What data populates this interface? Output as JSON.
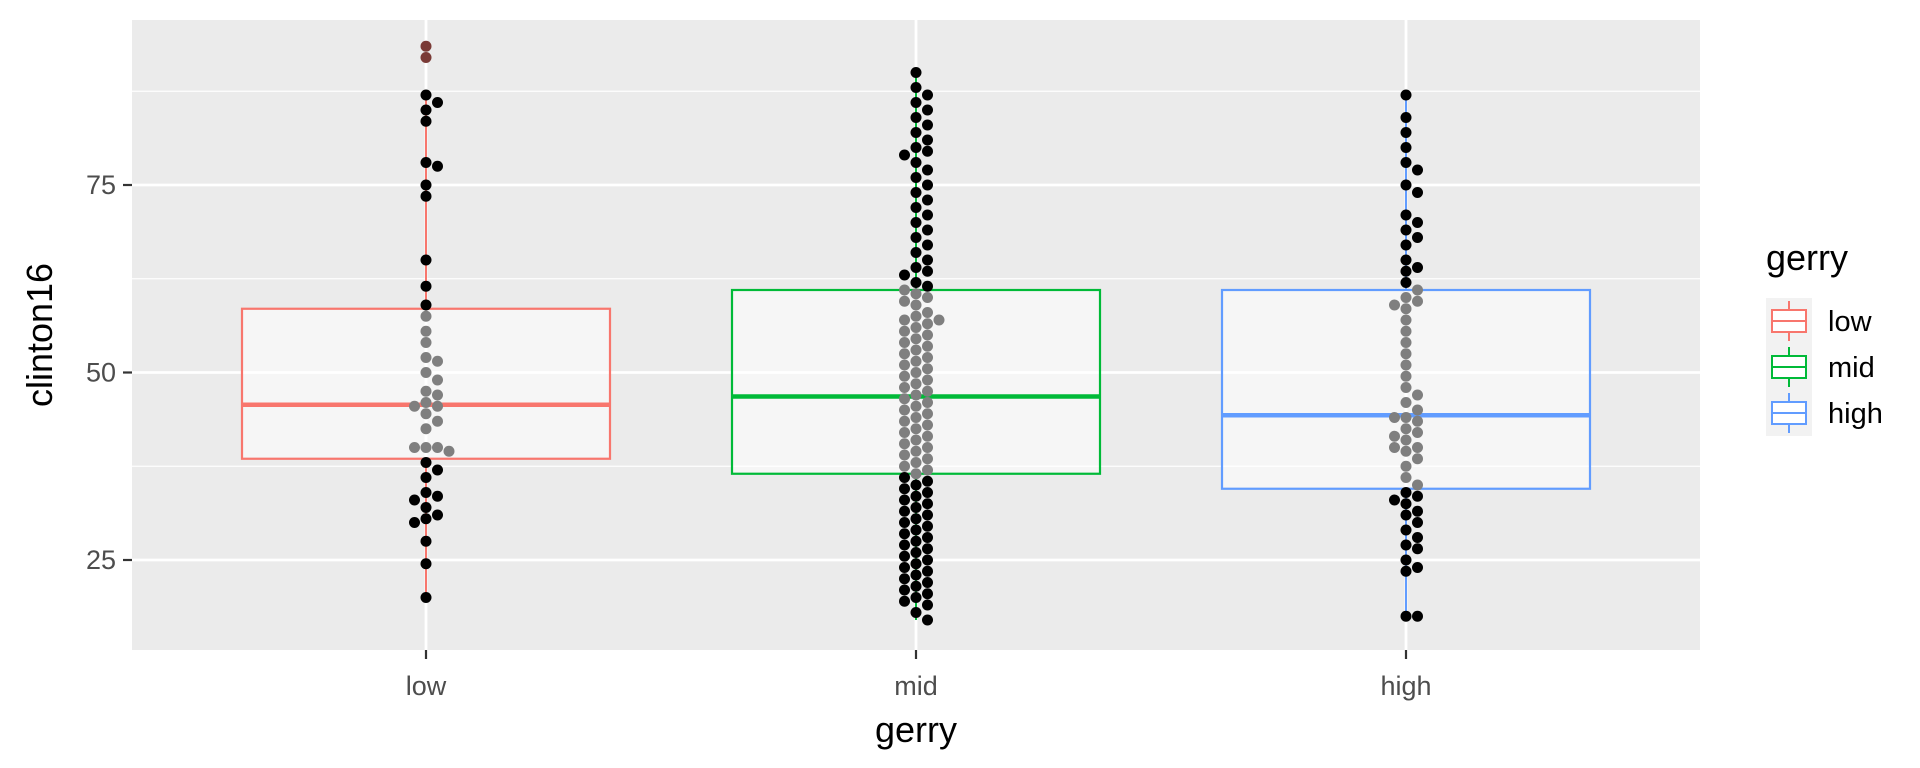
{
  "chart_data": {
    "type": "box",
    "title": "",
    "xlabel": "gerry",
    "ylabel": "clinton16",
    "categories": [
      "low",
      "mid",
      "high"
    ],
    "ylim": [
      13,
      97
    ],
    "yticks": [
      25,
      50,
      75
    ],
    "grid": true,
    "legend": {
      "title": "gerry",
      "position": "right",
      "entries": [
        "low",
        "mid",
        "high"
      ]
    },
    "colors": {
      "low": "#F8766D",
      "mid": "#00BA38",
      "high": "#619CFF"
    },
    "boxes": [
      {
        "category": "low",
        "whisker_low": 20,
        "q1": 38.5,
        "median": 45.7,
        "q3": 58.5,
        "whisker_high": 87,
        "outliers": [
          92,
          93.5
        ]
      },
      {
        "category": "mid",
        "whisker_low": 17,
        "q1": 36.5,
        "median": 46.8,
        "q3": 61.0,
        "whisker_high": 90,
        "outliers": []
      },
      {
        "category": "high",
        "whisker_low": 17.5,
        "q1": 34.5,
        "median": 44.3,
        "q3": 61.0,
        "whisker_high": 87,
        "outliers": []
      }
    ],
    "points": [
      {
        "category": "low",
        "values": [
          92,
          93.5,
          87,
          86,
          85,
          83.5,
          78,
          77.5,
          75,
          73.5,
          65,
          61.5,
          59,
          57.5,
          55.5,
          54,
          52,
          51.5,
          50,
          49,
          47.5,
          47,
          46,
          45.5,
          45.5,
          44.5,
          43.5,
          42.5,
          40,
          40,
          40,
          39.5,
          38,
          37,
          36,
          34,
          33.5,
          33,
          32,
          31,
          30.5,
          30,
          27.5,
          24.5,
          20
        ]
      },
      {
        "category": "mid",
        "values": [
          90,
          88,
          87,
          86,
          85,
          84,
          83,
          82,
          81,
          80,
          79.5,
          79,
          78,
          77,
          76,
          75,
          74,
          73,
          72,
          71,
          70,
          69,
          68,
          67,
          66,
          65,
          64,
          63.5,
          63,
          62,
          61.5,
          61,
          60.5,
          60,
          59.5,
          59,
          58,
          57.5,
          57,
          57,
          56.5,
          56,
          55.5,
          55,
          54.5,
          54,
          53.5,
          53,
          52.5,
          52,
          51.5,
          51,
          50.5,
          50,
          49.5,
          49,
          48.5,
          48,
          47.5,
          47,
          46.5,
          46,
          45.5,
          45,
          44.5,
          44,
          43.5,
          43,
          42.5,
          42,
          41.5,
          41,
          40.5,
          40,
          39.5,
          39,
          38.5,
          38,
          37.5,
          37,
          36.5,
          36,
          35.5,
          35,
          34.5,
          34,
          33.5,
          33,
          32.5,
          32,
          31.5,
          31,
          30.5,
          30,
          29.5,
          29,
          28.5,
          28,
          27.5,
          27,
          26.5,
          26,
          25.5,
          25,
          24.5,
          24,
          23.5,
          23,
          22.5,
          22,
          21.5,
          21,
          20.5,
          20,
          19.5,
          19,
          18,
          17
        ]
      },
      {
        "category": "high",
        "values": [
          87,
          84,
          82,
          80,
          78,
          77,
          75,
          74,
          71,
          70,
          69,
          68,
          67,
          65,
          64,
          63.5,
          62,
          61,
          60,
          59.5,
          59,
          58.5,
          57,
          55.5,
          54,
          52.5,
          51,
          49.5,
          48,
          47,
          46,
          45,
          44,
          44,
          43.5,
          42.5,
          42,
          41.5,
          41,
          40,
          40,
          39.5,
          38.5,
          37.5,
          36,
          35,
          34,
          33.5,
          33,
          32.5,
          31.5,
          31,
          30,
          29,
          28,
          27,
          26.5,
          25,
          24,
          23.5,
          17.5,
          17.5
        ]
      }
    ]
  }
}
